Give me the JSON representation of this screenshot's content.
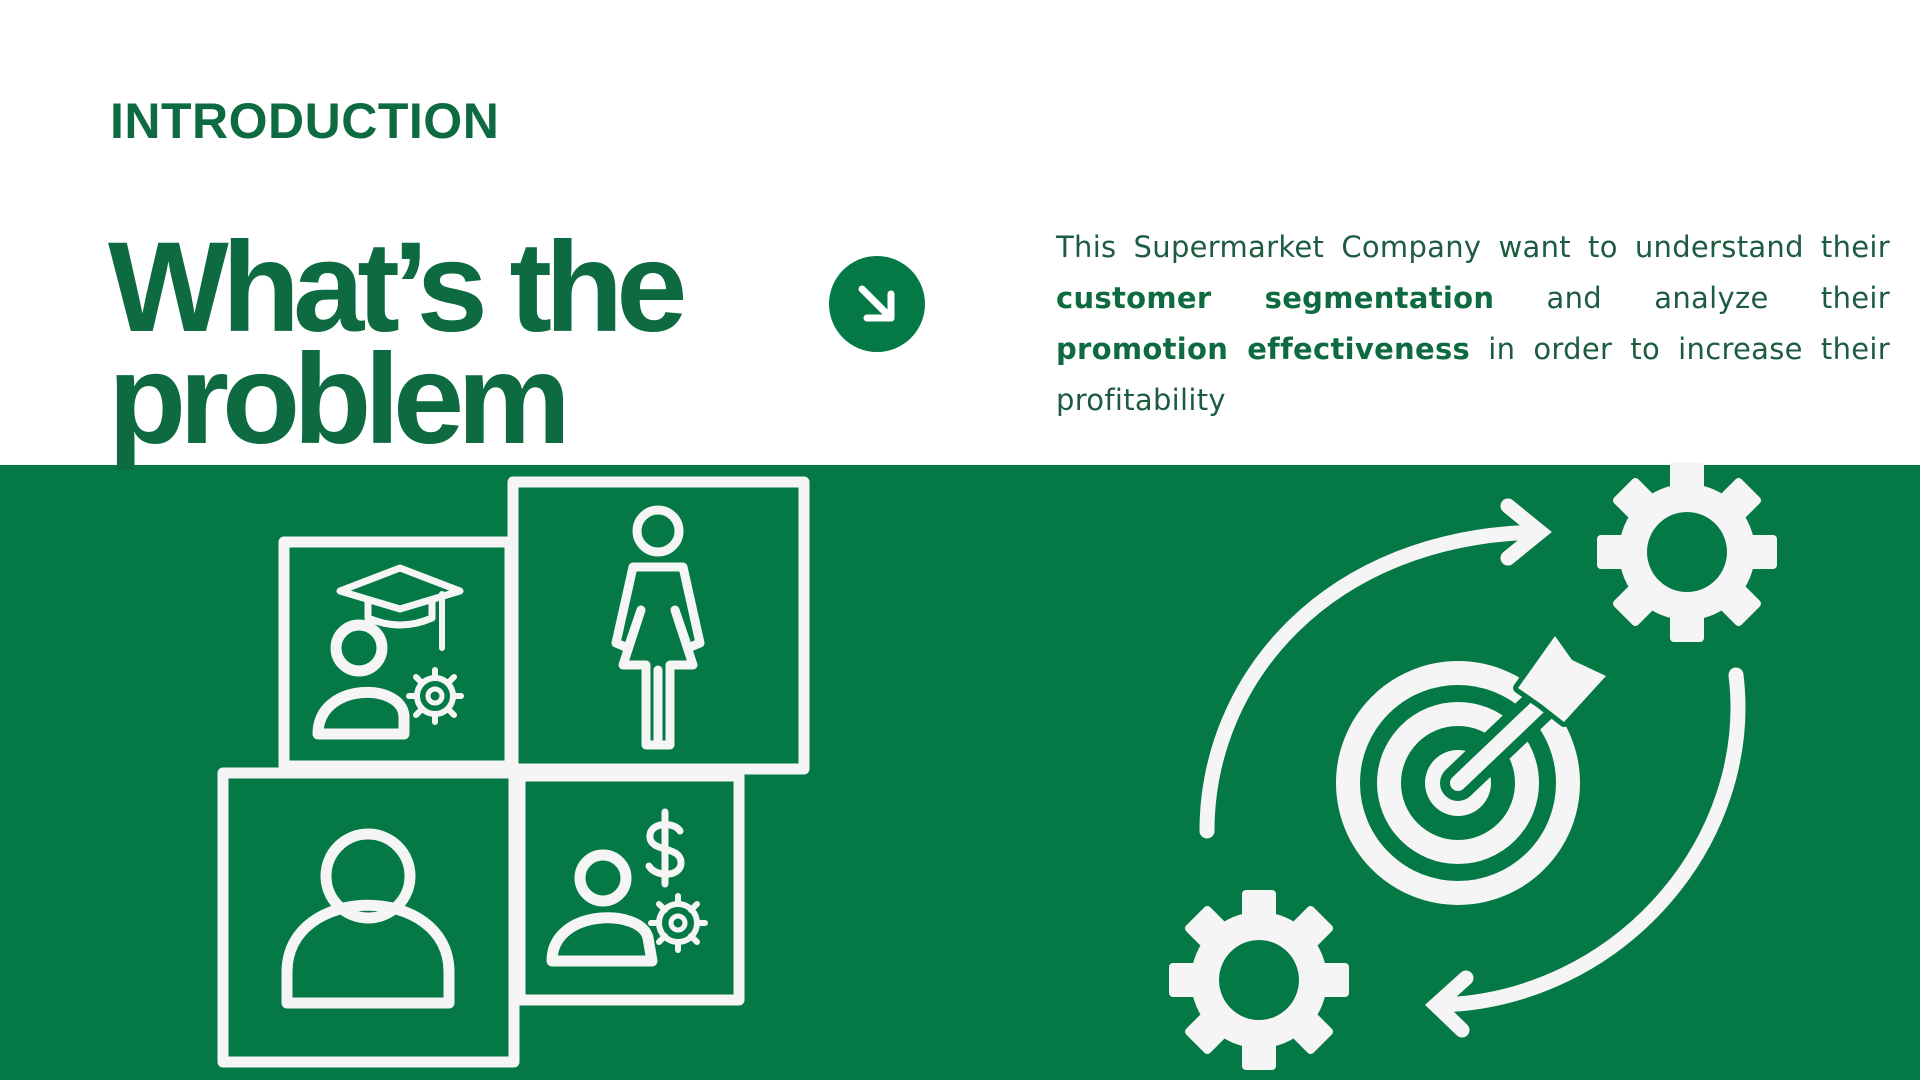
{
  "slide": {
    "eyebrow": "INTRODUCTION",
    "headline": {
      "line1": "What’s the",
      "line2": "problem"
    },
    "body": {
      "part1": "This Supermarket Company want to understand their ",
      "highlight1": "customer segmentation",
      "part2": " and analyze their ",
      "highlight2": "promotion effectiveness",
      "part3": " in order to increase their profitability"
    }
  },
  "colors": {
    "brand_green": "#047845",
    "heading_green": "#0e6a41",
    "background": "#ffffff",
    "icon_stroke": "#f4f5f4"
  },
  "icons": [
    "arrow-down-right-icon",
    "graduate-user-settings-icon",
    "female-figure-icon",
    "user-icon",
    "user-dollar-settings-icon",
    "target-cycle-icon",
    "gear-icon"
  ]
}
